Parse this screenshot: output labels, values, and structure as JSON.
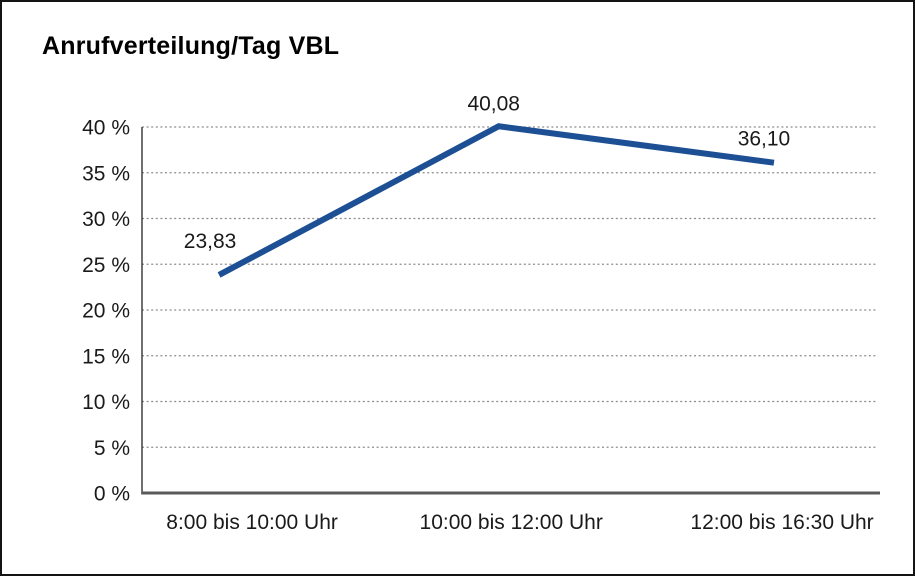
{
  "window": {
    "background": "#ffffff",
    "border_color": "#141414"
  },
  "chart_data": {
    "type": "line",
    "title": "Anrufverteilung/Tag VBL",
    "categories": [
      "8:00 bis 10:00 Uhr",
      "10:00 bis 12:00 Uhr",
      "12:00 bis 16:30 Uhr"
    ],
    "values": [
      23.83,
      40.08,
      36.1
    ],
    "data_labels": [
      "23,83",
      "40,08",
      "36,10"
    ],
    "xlabel": "",
    "ylabel": "",
    "y_unit": "%",
    "ylim": [
      0,
      40
    ],
    "y_tick_step": 5,
    "y_tick_labels": [
      "0 %",
      "5 %",
      "10 %",
      "15 %",
      "20 %",
      "25 %",
      "30 %",
      "35 %",
      "40 %"
    ],
    "grid": "horizontal-dotted",
    "legend": "none",
    "colors": {
      "line": "#1D4F94",
      "gridline": "#8c8c8c",
      "y_axis": "#404040",
      "x_axis": "#595959",
      "text": "#1a1a1a",
      "title": "#000000"
    }
  }
}
